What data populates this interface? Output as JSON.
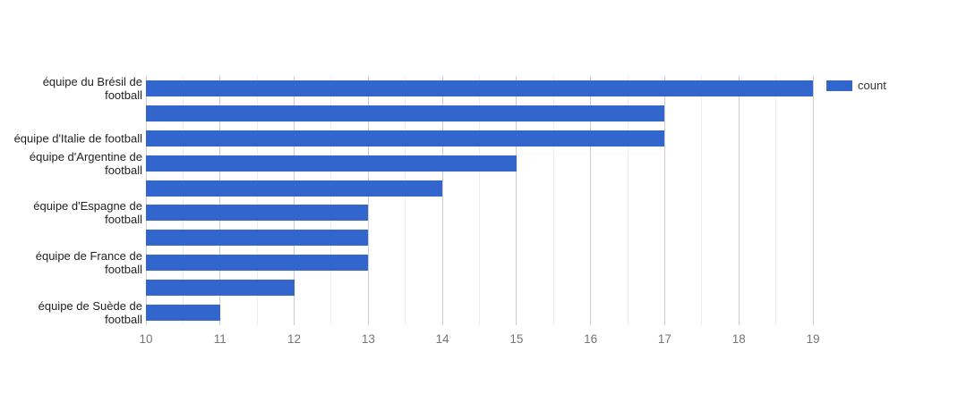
{
  "chart_data": {
    "type": "bar",
    "orientation": "horizontal",
    "title": "",
    "categories": [
      "équipe du Brésil de football",
      "",
      "équipe d'Italie de football",
      "équipe d'Argentine de football",
      "",
      "équipe d'Espagne de football",
      "",
      "équipe de France de football",
      "",
      "équipe de Suède de football"
    ],
    "axis_label_lines": [
      "équipe du Brésil de\nfootball",
      "",
      "équipe d'Italie de football",
      "équipe d'Argentine de\nfootball",
      "",
      "équipe d'Espagne de\nfootball",
      "",
      "équipe de France de\nfootball",
      "",
      "équipe de Suède de\nfootball"
    ],
    "series": [
      {
        "name": "count",
        "values": [
          19,
          17,
          17,
          15,
          14,
          13,
          13,
          13,
          12,
          11
        ]
      }
    ],
    "xlim": [
      10,
      19
    ],
    "x_ticks": [
      "10",
      "11",
      "12",
      "13",
      "14",
      "15",
      "16",
      "17",
      "18",
      "19"
    ],
    "minor_gridlines_per_interval": 1,
    "grid": true,
    "legend": {
      "label": "count",
      "position": "top-right"
    }
  },
  "colors": {
    "bar": "#3366cc",
    "grid_major": "#cccccc",
    "grid_minor": "#ededed",
    "tick_text": "#757575",
    "category_text": "#222222",
    "legend_text": "#333333",
    "background": "#ffffff"
  }
}
